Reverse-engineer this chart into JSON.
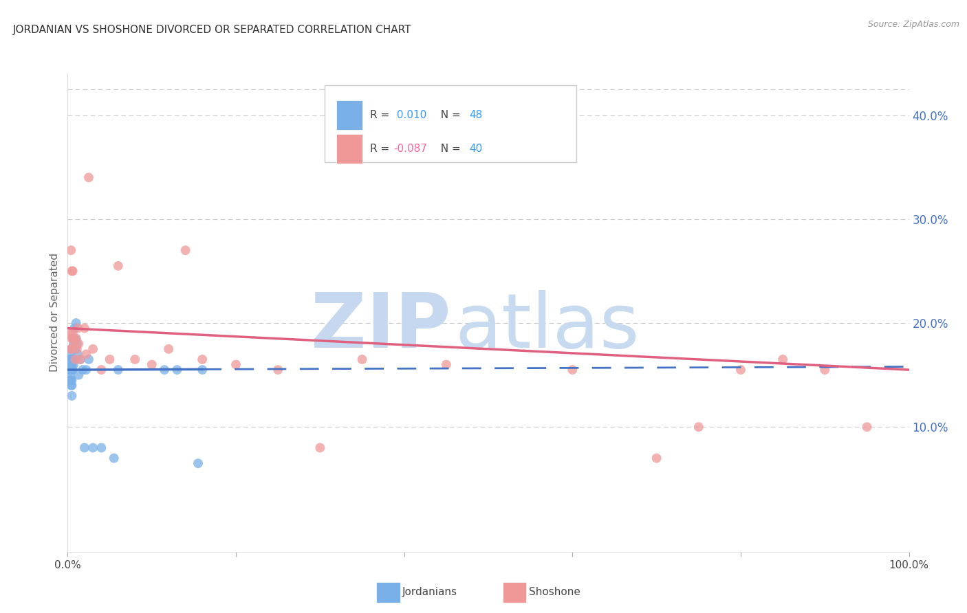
{
  "title": "JORDANIAN VS SHOSHONE DIVORCED OR SEPARATED CORRELATION CHART",
  "source": "Source: ZipAtlas.com",
  "ylabel": "Divorced or Separated",
  "right_ytick_labels": [
    "10.0%",
    "20.0%",
    "30.0%",
    "40.0%"
  ],
  "right_ytick_values": [
    0.1,
    0.2,
    0.3,
    0.4
  ],
  "xlim": [
    0.0,
    1.0
  ],
  "ylim": [
    -0.02,
    0.44
  ],
  "x_tick_positions": [
    0.0,
    0.2,
    0.4,
    0.6,
    0.8,
    1.0
  ],
  "x_tick_labels": [
    "0.0%",
    "",
    "",
    "",
    "",
    "100.0%"
  ],
  "blue_R": 0.01,
  "blue_N": 48,
  "pink_R": -0.087,
  "pink_N": 40,
  "blue_dots_x": [
    0.002,
    0.002,
    0.003,
    0.003,
    0.003,
    0.003,
    0.003,
    0.003,
    0.003,
    0.004,
    0.004,
    0.004,
    0.004,
    0.004,
    0.004,
    0.005,
    0.005,
    0.005,
    0.005,
    0.005,
    0.005,
    0.005,
    0.006,
    0.006,
    0.006,
    0.007,
    0.007,
    0.008,
    0.008,
    0.009,
    0.01,
    0.01,
    0.011,
    0.012,
    0.013,
    0.015,
    0.018,
    0.02,
    0.022,
    0.025,
    0.03,
    0.04,
    0.055,
    0.06,
    0.115,
    0.13,
    0.155,
    0.16
  ],
  "blue_dots_y": [
    0.155,
    0.16,
    0.145,
    0.15,
    0.155,
    0.16,
    0.162,
    0.165,
    0.17,
    0.14,
    0.145,
    0.155,
    0.16,
    0.165,
    0.175,
    0.13,
    0.14,
    0.145,
    0.155,
    0.16,
    0.165,
    0.175,
    0.155,
    0.165,
    0.185,
    0.16,
    0.18,
    0.165,
    0.195,
    0.175,
    0.185,
    0.2,
    0.18,
    0.17,
    0.15,
    0.165,
    0.155,
    0.08,
    0.155,
    0.165,
    0.08,
    0.08,
    0.07,
    0.155,
    0.155,
    0.155,
    0.065,
    0.155
  ],
  "pink_dots_x": [
    0.003,
    0.004,
    0.004,
    0.005,
    0.005,
    0.005,
    0.006,
    0.006,
    0.007,
    0.008,
    0.009,
    0.01,
    0.011,
    0.012,
    0.013,
    0.015,
    0.02,
    0.022,
    0.025,
    0.03,
    0.04,
    0.05,
    0.06,
    0.08,
    0.1,
    0.12,
    0.14,
    0.16,
    0.2,
    0.25,
    0.3,
    0.35,
    0.45,
    0.6,
    0.7,
    0.75,
    0.8,
    0.85,
    0.9,
    0.95
  ],
  "pink_dots_y": [
    0.19,
    0.27,
    0.175,
    0.25,
    0.175,
    0.185,
    0.19,
    0.25,
    0.185,
    0.18,
    0.165,
    0.185,
    0.175,
    0.195,
    0.18,
    0.165,
    0.195,
    0.17,
    0.34,
    0.175,
    0.155,
    0.165,
    0.255,
    0.165,
    0.16,
    0.175,
    0.27,
    0.165,
    0.16,
    0.155,
    0.08,
    0.165,
    0.16,
    0.155,
    0.07,
    0.1,
    0.155,
    0.165,
    0.155,
    0.1
  ],
  "blue_line_color": "#4472c4",
  "pink_line_color": "#e06080",
  "dot_blue_color": "#7ab0e8",
  "dot_pink_color": "#f09898",
  "watermark_zip_color": "#c5d8f0",
  "watermark_atlas_color": "#c8daf0",
  "grid_color": "#c8c8c8",
  "title_fontsize": 11,
  "source_fontsize": 9,
  "legend_r_color_blue": "#3399ff",
  "legend_r_color_pink": "#ff6699",
  "legend_n_color": "#3399ff"
}
